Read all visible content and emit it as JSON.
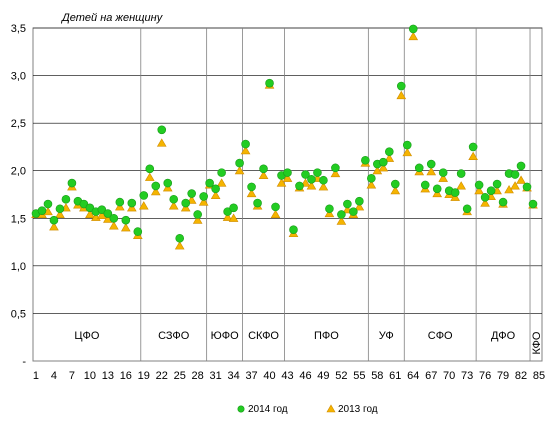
{
  "chart_data": {
    "type": "scatter",
    "ylabel": "Детей на женщину",
    "ylim": [
      0,
      3.5
    ],
    "y_ticks": [
      "-",
      "0,5",
      "1,0",
      "1,5",
      "2,0",
      "2,5",
      "3,0",
      "3,5"
    ],
    "x_tick_labels": [
      "1",
      "4",
      "7",
      "10",
      "13",
      "16",
      "19",
      "22",
      "25",
      "28",
      "31",
      "34",
      "37",
      "40",
      "43",
      "46",
      "49",
      "52",
      "55",
      "58",
      "61",
      "64",
      "67",
      "70",
      "73",
      "76",
      "79",
      "82",
      "85"
    ],
    "districts": [
      {
        "label": "ЦФО",
        "from": 0.5,
        "to": 18.5
      },
      {
        "label": "СЗФО",
        "from": 18.5,
        "to": 29.5
      },
      {
        "label": "ЮФО",
        "from": 29.5,
        "to": 35.5
      },
      {
        "label": "СКФО",
        "from": 35.5,
        "to": 42.5
      },
      {
        "label": "ПФО",
        "from": 42.5,
        "to": 56.5
      },
      {
        "label": "УФ",
        "from": 56.5,
        "to": 62.5
      },
      {
        "label": "СФО",
        "from": 62.5,
        "to": 74.5
      },
      {
        "label": "ДФО",
        "from": 74.5,
        "to": 83.5
      },
      {
        "label": "КФО",
        "from": 83.5,
        "to": 85.5
      }
    ],
    "series": [
      {
        "name": "2014 год",
        "color": "#22cc22",
        "values": [
          1.55,
          1.58,
          1.65,
          1.48,
          1.6,
          1.7,
          1.87,
          1.68,
          1.65,
          1.61,
          1.57,
          1.59,
          1.55,
          1.5,
          1.67,
          1.48,
          1.66,
          1.36,
          1.74,
          2.02,
          1.84,
          2.43,
          1.87,
          1.7,
          1.29,
          1.66,
          1.76,
          1.54,
          1.73,
          1.87,
          1.81,
          1.98,
          1.57,
          1.61,
          2.08,
          2.28,
          1.83,
          1.66,
          2.02,
          2.92,
          1.62,
          1.95,
          1.98,
          1.38,
          1.84,
          1.96,
          1.91,
          1.98,
          1.9,
          1.6,
          2.03,
          1.54,
          1.65,
          1.57,
          1.68,
          2.11,
          1.92,
          2.07,
          2.09,
          2.2,
          1.86,
          2.89,
          2.27,
          3.49,
          2.03,
          1.85,
          2.07,
          1.81,
          1.98,
          1.79,
          1.77,
          1.97,
          1.6,
          2.25,
          1.85,
          1.72,
          1.79,
          1.86,
          1.67,
          1.97,
          1.96,
          2.05,
          1.83,
          1.65
        ]
      },
      {
        "name": "2013 год",
        "color": "#f5b400",
        "values": [
          1.55,
          1.55,
          1.58,
          1.42,
          1.55,
          1.62,
          1.84,
          1.65,
          1.62,
          1.55,
          1.52,
          1.54,
          1.5,
          1.43,
          1.63,
          1.41,
          1.62,
          1.33,
          1.64,
          1.94,
          1.79,
          2.3,
          1.83,
          1.64,
          1.22,
          1.62,
          1.7,
          1.49,
          1.68,
          1.86,
          1.75,
          1.88,
          1.52,
          1.51,
          2.01,
          2.22,
          1.77,
          1.64,
          1.96,
          2.91,
          1.55,
          1.88,
          1.93,
          1.35,
          1.83,
          1.88,
          1.85,
          1.93,
          1.84,
          1.56,
          1.98,
          1.48,
          1.6,
          1.55,
          1.63,
          2.09,
          1.86,
          2.01,
          2.04,
          2.14,
          1.8,
          2.8,
          2.2,
          3.42,
          2.0,
          1.82,
          2.0,
          1.77,
          1.93,
          1.76,
          1.73,
          1.85,
          1.58,
          2.16,
          1.8,
          1.67,
          1.74,
          1.8,
          1.66,
          1.81,
          1.85,
          1.91,
          1.83,
          1.65
        ]
      }
    ]
  }
}
